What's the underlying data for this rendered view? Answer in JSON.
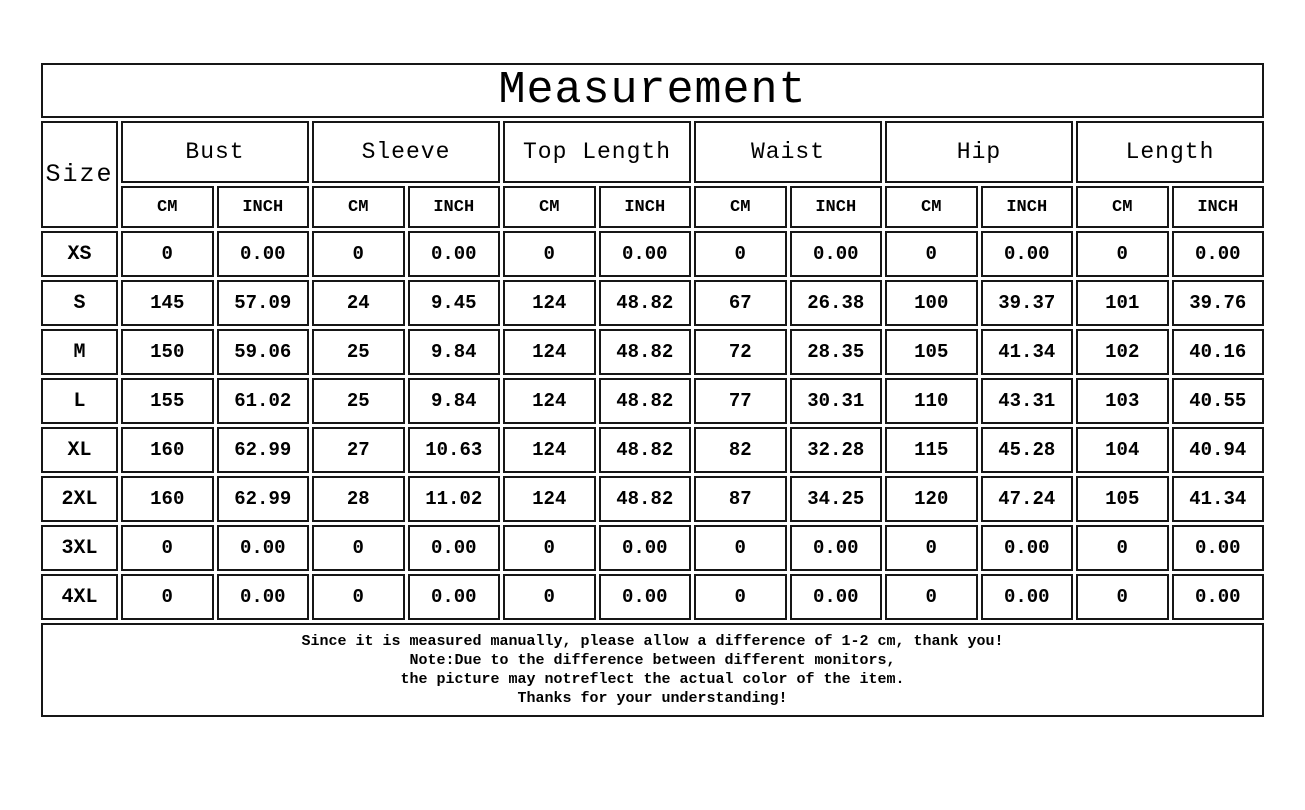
{
  "title": "Measurement",
  "colors": {
    "background": "#ffffff",
    "border": "#161616",
    "text": "#000000"
  },
  "chart_data": {
    "type": "table",
    "title": "Measurement",
    "size_column_header": "Size",
    "measurement_groups": [
      "Bust",
      "Sleeve",
      "Top Length",
      "Waist",
      "Hip",
      "Length"
    ],
    "unit_headers": [
      "CM",
      "INCH"
    ],
    "column_headers": [
      "Size",
      "Bust CM",
      "Bust INCH",
      "Sleeve CM",
      "Sleeve INCH",
      "Top Length CM",
      "Top Length INCH",
      "Waist CM",
      "Waist INCH",
      "Hip CM",
      "Hip INCH",
      "Length CM",
      "Length INCH"
    ],
    "rows": [
      {
        "size": "XS",
        "values": [
          "0",
          "0.00",
          "0",
          "0.00",
          "0",
          "0.00",
          "0",
          "0.00",
          "0",
          "0.00",
          "0",
          "0.00"
        ]
      },
      {
        "size": "S",
        "values": [
          "145",
          "57.09",
          "24",
          "9.45",
          "124",
          "48.82",
          "67",
          "26.38",
          "100",
          "39.37",
          "101",
          "39.76"
        ]
      },
      {
        "size": "M",
        "values": [
          "150",
          "59.06",
          "25",
          "9.84",
          "124",
          "48.82",
          "72",
          "28.35",
          "105",
          "41.34",
          "102",
          "40.16"
        ]
      },
      {
        "size": "L",
        "values": [
          "155",
          "61.02",
          "25",
          "9.84",
          "124",
          "48.82",
          "77",
          "30.31",
          "110",
          "43.31",
          "103",
          "40.55"
        ]
      },
      {
        "size": "XL",
        "values": [
          "160",
          "62.99",
          "27",
          "10.63",
          "124",
          "48.82",
          "82",
          "32.28",
          "115",
          "45.28",
          "104",
          "40.94"
        ]
      },
      {
        "size": "2XL",
        "values": [
          "160",
          "62.99",
          "28",
          "11.02",
          "124",
          "48.82",
          "87",
          "34.25",
          "120",
          "47.24",
          "105",
          "41.34"
        ]
      },
      {
        "size": "3XL",
        "values": [
          "0",
          "0.00",
          "0",
          "0.00",
          "0",
          "0.00",
          "0",
          "0.00",
          "0",
          "0.00",
          "0",
          "0.00"
        ]
      },
      {
        "size": "4XL",
        "values": [
          "0",
          "0.00",
          "0",
          "0.00",
          "0",
          "0.00",
          "0",
          "0.00",
          "0",
          "0.00",
          "0",
          "0.00"
        ]
      }
    ],
    "notes": [
      "Since it is measured manually, please allow a difference of 1-2 cm, thank you!",
      "Note:Due to the difference between different monitors,",
      "the picture may notreflect the actual color of the item.",
      "Thanks for your understanding!"
    ]
  }
}
